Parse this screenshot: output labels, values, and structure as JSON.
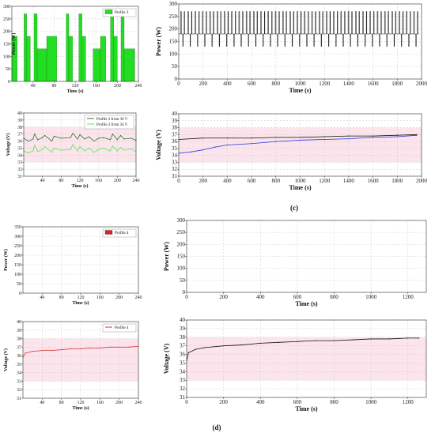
{
  "captions": {
    "c": "(c)",
    "d": "(d)"
  },
  "chart_data": [
    {
      "id": "c1",
      "type": "bar",
      "xlabel": "Time (s)",
      "ylabel": "Power (W)",
      "xlim": [
        0,
        240
      ],
      "ylim": [
        0,
        300
      ],
      "xticks": [
        40,
        80,
        120,
        160,
        200,
        240
      ],
      "yticks": [
        0,
        50,
        100,
        150,
        200,
        250,
        300
      ],
      "legend": "top-right",
      "series": [
        {
          "name": "Profile 3",
          "color": "#22dd22",
          "steps": [
            [
              0,
              180
            ],
            [
              10,
              0
            ],
            [
              23,
              270
            ],
            [
              28,
              180
            ],
            [
              35,
              0
            ],
            [
              42,
              270
            ],
            [
              48,
              130
            ],
            [
              66,
              180
            ],
            [
              85,
              0
            ],
            [
              103,
              270
            ],
            [
              108,
              180
            ],
            [
              115,
              0
            ],
            [
              127,
              270
            ],
            [
              133,
              180
            ],
            [
              140,
              0
            ],
            [
              154,
              130
            ],
            [
              168,
              180
            ],
            [
              178,
              0
            ],
            [
              187,
              270
            ],
            [
              193,
              180
            ],
            [
              200,
              0
            ],
            [
              207,
              270
            ],
            [
              213,
              130
            ],
            [
              232,
              130
            ]
          ]
        }
      ]
    },
    {
      "id": "c2",
      "type": "line",
      "xlabel": "Time (s)",
      "ylabel": "Voltage (V)",
      "xlim": [
        0,
        240
      ],
      "ylim": [
        31,
        40
      ],
      "xticks": [
        40,
        80,
        120,
        160,
        200,
        240
      ],
      "yticks": [
        31,
        32,
        33,
        34,
        35,
        36,
        37,
        38,
        39,
        40
      ],
      "band": [
        33,
        38
      ],
      "legend": "top-right",
      "series": [
        {
          "name": "Profile 3 from 36 V",
          "color": "#2a7a2a",
          "x": [
            0,
            10,
            20,
            23,
            30,
            40,
            45,
            60,
            65,
            80,
            100,
            105,
            115,
            120,
            130,
            140,
            150,
            160,
            170,
            185,
            190,
            200,
            207,
            215,
            230,
            240
          ],
          "y": [
            36.4,
            36.0,
            36.3,
            37.0,
            36.2,
            36.5,
            36.8,
            36.0,
            36.7,
            36.4,
            36.5,
            37.1,
            36.3,
            36.9,
            36.3,
            36.6,
            36.0,
            36.4,
            36.5,
            36.2,
            37.0,
            36.2,
            36.8,
            36.3,
            36.4,
            36.1
          ]
        },
        {
          "name": "Profile 3 from 34 V",
          "color": "#55ee55",
          "x": [
            0,
            10,
            20,
            23,
            30,
            40,
            45,
            60,
            65,
            80,
            100,
            105,
            115,
            120,
            130,
            140,
            150,
            160,
            170,
            185,
            190,
            200,
            207,
            215,
            230,
            240
          ],
          "y": [
            34.6,
            34.3,
            34.6,
            35.4,
            34.5,
            34.8,
            35.2,
            34.4,
            35.0,
            34.7,
            34.8,
            35.5,
            34.6,
            35.2,
            34.6,
            35.0,
            34.4,
            34.8,
            35.0,
            34.6,
            35.3,
            34.6,
            35.1,
            34.7,
            34.9,
            34.5
          ]
        }
      ]
    },
    {
      "id": "c3",
      "type": "line",
      "xlabel": "Time (s)",
      "ylabel": "Power (W)",
      "xlim": [
        0,
        2000
      ],
      "ylim": [
        0,
        300
      ],
      "xticks": [
        0,
        200,
        400,
        600,
        800,
        1000,
        1200,
        1400,
        1600,
        1800,
        2000
      ],
      "yticks": [
        0,
        50,
        100,
        150,
        200,
        250,
        300
      ],
      "series": [
        {
          "color": "#000000",
          "repeating_pulses": {
            "start": 0,
            "end": 1960,
            "period": 60,
            "base": 180,
            "high": 270,
            "low": 130
          }
        }
      ]
    },
    {
      "id": "c4",
      "type": "line",
      "xlabel": "Time (s)",
      "ylabel": "Voltage (V)",
      "xlim": [
        0,
        2000
      ],
      "ylim": [
        31,
        40
      ],
      "xticks": [
        0,
        200,
        400,
        600,
        800,
        1000,
        1200,
        1400,
        1600,
        1800,
        2000
      ],
      "yticks": [
        31,
        32,
        33,
        34,
        35,
        36,
        37,
        38,
        39,
        40
      ],
      "band": [
        33,
        38
      ],
      "series": [
        {
          "color": "#111111",
          "x": [
            0,
            200,
            400,
            600,
            800,
            1000,
            1200,
            1400,
            1600,
            1800,
            1960
          ],
          "y": [
            36.3,
            36.5,
            36.5,
            36.5,
            36.6,
            36.6,
            36.7,
            36.8,
            36.8,
            36.9,
            37.0
          ]
        },
        {
          "color": "#2233dd",
          "x": [
            0,
            100,
            200,
            300,
            400,
            600,
            800,
            1000,
            1200,
            1400,
            1600,
            1800,
            1960
          ],
          "y": [
            34.3,
            34.5,
            34.8,
            35.2,
            35.5,
            35.7,
            36.0,
            36.2,
            36.3,
            36.4,
            36.6,
            36.7,
            36.9
          ]
        }
      ]
    },
    {
      "id": "d1",
      "type": "bar",
      "xlabel": "Time (s)",
      "ylabel": "Power (W)",
      "xlim": [
        0,
        240
      ],
      "ylim": [
        0,
        350
      ],
      "xticks": [
        40,
        80,
        120,
        160,
        200,
        240
      ],
      "yticks": [
        0,
        50,
        100,
        150,
        200,
        250,
        300,
        350
      ],
      "legend": "top-right",
      "series": [
        {
          "name": "Profile 4",
          "color": "#dd2222",
          "steps": []
        }
      ]
    },
    {
      "id": "d2",
      "type": "line",
      "xlabel": "Time (s)",
      "ylabel": "Voltage (V)",
      "xlim": [
        0,
        240
      ],
      "ylim": [
        31,
        40
      ],
      "xticks": [
        40,
        80,
        120,
        160,
        200,
        240
      ],
      "yticks": [
        31,
        32,
        33,
        34,
        35,
        36,
        37,
        38,
        39,
        40
      ],
      "band": [
        33,
        38
      ],
      "legend": "top-right",
      "series": [
        {
          "name": "Profile 4",
          "color": "#dd3333",
          "x": [
            0,
            5,
            20,
            40,
            60,
            80,
            100,
            120,
            140,
            160,
            180,
            200,
            220,
            240
          ],
          "y": [
            35.8,
            36.3,
            36.5,
            36.6,
            36.6,
            36.7,
            36.8,
            36.8,
            36.9,
            36.9,
            37.0,
            37.0,
            37.0,
            37.1
          ]
        }
      ]
    },
    {
      "id": "d3",
      "type": "line",
      "xlabel": "Time (s)",
      "ylabel": "Power (W)",
      "xlim": [
        0,
        1300
      ],
      "ylim": [
        0,
        300
      ],
      "xticks": [
        0,
        200,
        400,
        600,
        800,
        1000,
        1200
      ],
      "yticks": [
        0,
        50,
        100,
        150,
        200,
        250,
        300
      ],
      "series": []
    },
    {
      "id": "d4",
      "type": "line",
      "xlabel": "Time (s)",
      "ylabel": "Voltage (V)",
      "xlim": [
        0,
        1300
      ],
      "ylim": [
        31,
        40
      ],
      "xticks": [
        0,
        200,
        400,
        600,
        800,
        1000,
        1200
      ],
      "yticks": [
        31,
        32,
        33,
        34,
        35,
        36,
        37,
        38,
        39,
        40
      ],
      "band": [
        33,
        38
      ],
      "series": [
        {
          "color": "#111111",
          "x": [
            0,
            10,
            50,
            100,
            200,
            300,
            400,
            500,
            600,
            700,
            800,
            900,
            1000,
            1100,
            1200,
            1260
          ],
          "y": [
            35.3,
            36.2,
            36.6,
            36.8,
            37.0,
            37.1,
            37.3,
            37.4,
            37.5,
            37.6,
            37.6,
            37.7,
            37.8,
            37.8,
            37.9,
            37.9
          ]
        }
      ]
    }
  ]
}
